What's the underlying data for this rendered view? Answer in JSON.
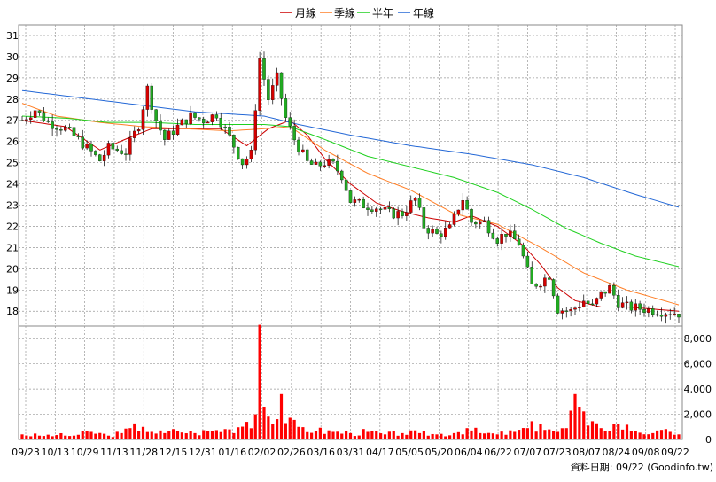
{
  "chart_data": [
    {
      "type": "candlestick",
      "legend": [
        {
          "name": "月線",
          "color": "#cc0000"
        },
        {
          "name": "季線",
          "color": "#ff7f27"
        },
        {
          "name": "半年",
          "color": "#1fd01f"
        },
        {
          "name": "年線",
          "color": "#2468d6"
        }
      ],
      "legend_position": "top-center",
      "grid": true,
      "ylim": [
        17.3,
        31.5
      ],
      "y_ticks": [
        "18",
        "19",
        "20",
        "21",
        "22",
        "23",
        "24",
        "25",
        "26",
        "27",
        "28",
        "29",
        "30",
        "31"
      ],
      "y_tick_values": [
        18,
        19,
        20,
        21,
        22,
        23,
        24,
        25,
        26,
        27,
        28,
        29,
        30,
        31
      ],
      "x_tick_labels": [
        "09/23",
        "10/13",
        "10/29",
        "11/13",
        "11/28",
        "12/15",
        "12/31",
        "01/16",
        "02/02",
        "02/26",
        "03/16",
        "03/31",
        "04/17",
        "05/05",
        "05/20",
        "06/04",
        "06/22",
        "07/07",
        "07/23",
        "08/07",
        "08/24",
        "09/08",
        "09/22"
      ],
      "up_color": "#d40000",
      "down_color": "#22aa22",
      "price_path": [
        [
          0,
          27.0
        ],
        [
          3,
          27.5
        ],
        [
          6,
          26.9
        ],
        [
          10,
          26.6
        ],
        [
          14,
          25.9
        ],
        [
          18,
          25.1
        ],
        [
          20,
          25.7
        ],
        [
          24,
          25.5
        ],
        [
          27,
          26.8
        ],
        [
          29,
          28.5
        ],
        [
          31,
          27.0
        ],
        [
          33,
          26.1
        ],
        [
          36,
          26.7
        ],
        [
          39,
          27.2
        ],
        [
          42,
          27.0
        ],
        [
          45,
          27.3
        ],
        [
          48,
          26.2
        ],
        [
          51,
          25.0
        ],
        [
          53,
          25.4
        ],
        [
          55,
          29.9
        ],
        [
          57,
          28.0
        ],
        [
          59,
          29.0
        ],
        [
          61,
          27.1
        ],
        [
          63,
          26.1
        ],
        [
          66,
          25.0
        ],
        [
          68,
          24.8
        ],
        [
          70,
          25.0
        ],
        [
          72,
          24.9
        ],
        [
          74,
          24.4
        ],
        [
          76,
          23.2
        ],
        [
          79,
          23.0
        ],
        [
          82,
          22.9
        ],
        [
          85,
          22.6
        ],
        [
          88,
          22.6
        ],
        [
          91,
          23.3
        ],
        [
          93,
          22.0
        ],
        [
          96,
          21.6
        ],
        [
          99,
          21.9
        ],
        [
          101,
          22.9
        ],
        [
          102,
          23.3
        ],
        [
          104,
          22.2
        ],
        [
          107,
          22.2
        ],
        [
          110,
          21.4
        ],
        [
          112,
          21.7
        ],
        [
          115,
          21.2
        ],
        [
          118,
          19.2
        ],
        [
          120,
          19.4
        ],
        [
          122,
          19.7
        ],
        [
          124,
          18.1
        ],
        [
          127,
          18.0
        ],
        [
          130,
          18.5
        ],
        [
          132,
          18.2
        ],
        [
          134,
          18.8
        ],
        [
          136,
          19.1
        ],
        [
          138,
          18.4
        ],
        [
          140,
          18.2
        ],
        [
          144,
          18.1
        ],
        [
          148,
          18.0
        ],
        [
          152,
          17.9
        ]
      ],
      "series": [
        {
          "name": "月線",
          "color": "#cc0000",
          "points": [
            [
              0,
              27.0
            ],
            [
              10,
              26.7
            ],
            [
              18,
              25.6
            ],
            [
              25,
              26.2
            ],
            [
              30,
              26.6
            ],
            [
              38,
              26.6
            ],
            [
              46,
              26.6
            ],
            [
              52,
              25.8
            ],
            [
              57,
              26.6
            ],
            [
              62,
              27.0
            ],
            [
              66,
              26.3
            ],
            [
              70,
              25.2
            ],
            [
              76,
              24.0
            ],
            [
              82,
              23.1
            ],
            [
              88,
              22.7
            ],
            [
              94,
              22.4
            ],
            [
              100,
              22.2
            ],
            [
              104,
              22.5
            ],
            [
              110,
              22.0
            ],
            [
              116,
              21.1
            ],
            [
              120,
              20.2
            ],
            [
              124,
              19.1
            ],
            [
              128,
              18.5
            ],
            [
              134,
              18.2
            ],
            [
              140,
              18.2
            ],
            [
              152,
              18.0
            ]
          ]
        },
        {
          "name": "季線",
          "color": "#ff7f27",
          "points": [
            [
              0,
              27.8
            ],
            [
              8,
              27.2
            ],
            [
              18,
              26.9
            ],
            [
              28,
              26.7
            ],
            [
              38,
              26.6
            ],
            [
              48,
              26.5
            ],
            [
              56,
              26.6
            ],
            [
              62,
              26.7
            ],
            [
              70,
              25.6
            ],
            [
              80,
              24.5
            ],
            [
              90,
              23.7
            ],
            [
              100,
              22.6
            ],
            [
              110,
              22.1
            ],
            [
              120,
              21.0
            ],
            [
              130,
              19.8
            ],
            [
              140,
              19.0
            ],
            [
              152,
              18.3
            ]
          ]
        },
        {
          "name": "半年",
          "color": "#1fd01f",
          "points": [
            [
              0,
              27.2
            ],
            [
              10,
              27.1
            ],
            [
              20,
              26.9
            ],
            [
              30,
              26.9
            ],
            [
              40,
              26.8
            ],
            [
              50,
              26.8
            ],
            [
              56,
              26.8
            ],
            [
              62,
              26.7
            ],
            [
              70,
              26.1
            ],
            [
              80,
              25.3
            ],
            [
              90,
              24.8
            ],
            [
              100,
              24.3
            ],
            [
              110,
              23.6
            ],
            [
              118,
              22.8
            ],
            [
              126,
              21.9
            ],
            [
              134,
              21.2
            ],
            [
              142,
              20.6
            ],
            [
              152,
              20.1
            ]
          ]
        },
        {
          "name": "年線",
          "color": "#2468d6",
          "points": [
            [
              0,
              28.4
            ],
            [
              20,
              27.9
            ],
            [
              40,
              27.4
            ],
            [
              56,
              27.2
            ],
            [
              64,
              26.8
            ],
            [
              76,
              26.3
            ],
            [
              90,
              25.8
            ],
            [
              104,
              25.4
            ],
            [
              118,
              24.9
            ],
            [
              130,
              24.3
            ],
            [
              142,
              23.5
            ],
            [
              152,
              22.9
            ]
          ]
        }
      ]
    },
    {
      "type": "bar",
      "ylim": [
        0,
        9000
      ],
      "y_ticks": [
        "0",
        "2,000",
        "4,000",
        "6,000",
        "8,000"
      ],
      "y_tick_values": [
        0,
        2000,
        4000,
        6000,
        8000
      ],
      "color": "#ff0000",
      "volume_points": [
        [
          0,
          400
        ],
        [
          4,
          300
        ],
        [
          8,
          350
        ],
        [
          12,
          300
        ],
        [
          16,
          600
        ],
        [
          20,
          300
        ],
        [
          23,
          500
        ],
        [
          25,
          900
        ],
        [
          28,
          1000
        ],
        [
          30,
          600
        ],
        [
          33,
          500
        ],
        [
          36,
          700
        ],
        [
          40,
          500
        ],
        [
          44,
          700
        ],
        [
          48,
          800
        ],
        [
          52,
          1400
        ],
        [
          54,
          2000
        ],
        [
          55,
          9100
        ],
        [
          56,
          2600
        ],
        [
          58,
          1200
        ],
        [
          60,
          3600
        ],
        [
          61,
          1300
        ],
        [
          64,
          1000
        ],
        [
          68,
          700
        ],
        [
          72,
          600
        ],
        [
          76,
          500
        ],
        [
          80,
          600
        ],
        [
          84,
          400
        ],
        [
          88,
          500
        ],
        [
          92,
          500
        ],
        [
          96,
          400
        ],
        [
          100,
          500
        ],
        [
          103,
          900
        ],
        [
          106,
          500
        ],
        [
          110,
          400
        ],
        [
          114,
          600
        ],
        [
          117,
          900
        ],
        [
          120,
          1200
        ],
        [
          122,
          800
        ],
        [
          124,
          600
        ],
        [
          126,
          900
        ],
        [
          128,
          3600
        ],
        [
          129,
          2600
        ],
        [
          131,
          1100
        ],
        [
          134,
          900
        ],
        [
          138,
          1200
        ],
        [
          142,
          700
        ],
        [
          146,
          500
        ],
        [
          150,
          600
        ],
        [
          152,
          400
        ]
      ]
    }
  ],
  "footer": {
    "source": "資料日期: 09/22  (Goodinfo.tw)"
  }
}
